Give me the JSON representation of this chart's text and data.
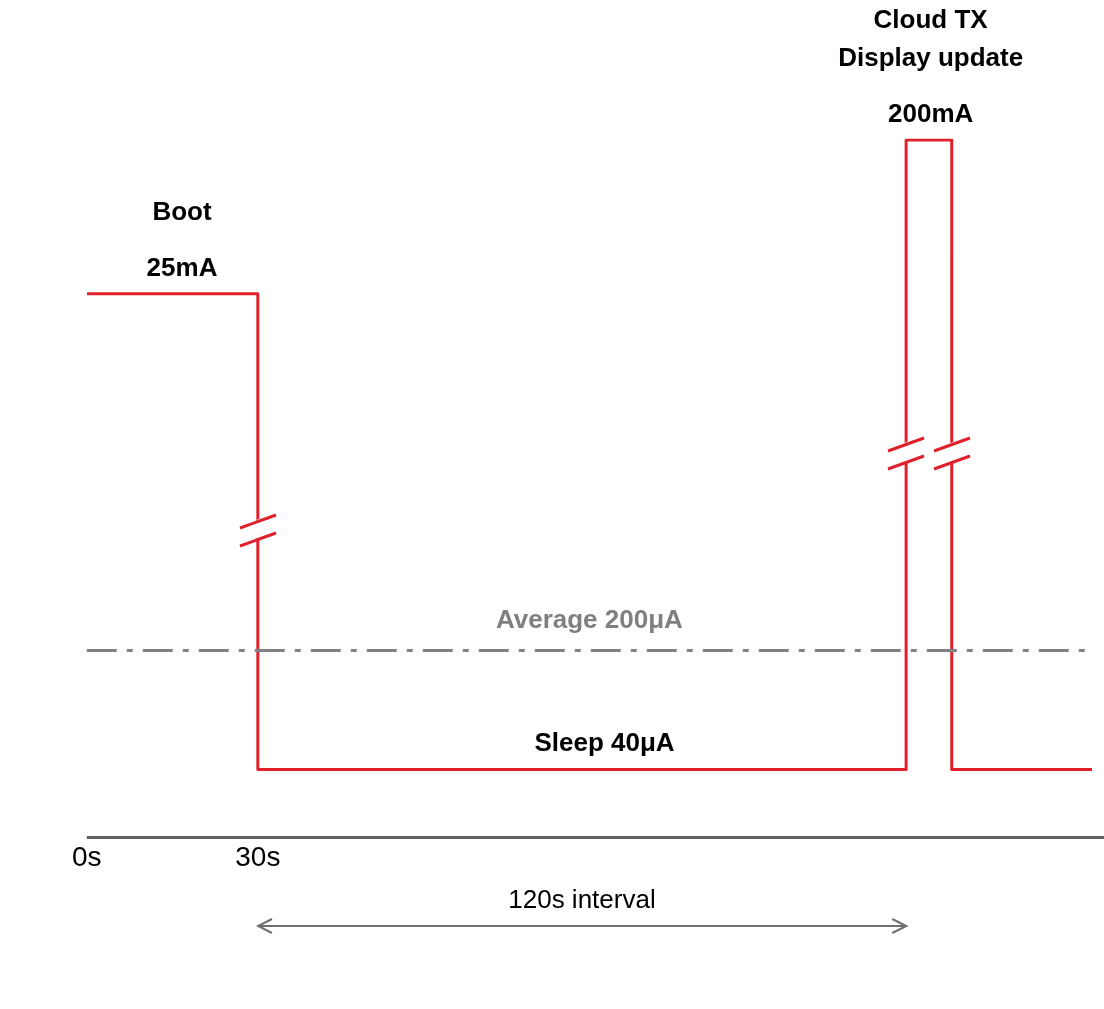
{
  "chart_data": {
    "type": "step",
    "log": "y",
    "tick_labels": "x",
    "x": [
      0,
      16.7,
      30,
      90.8,
      143.7,
      148,
      151.7,
      176.3
    ],
    "series": [
      {
        "color": "#e0202a",
        "values": [
          25,
          25,
          0.04,
          0.04,
          200,
          200,
          0.04,
          0.04
        ],
        "value_labels": [
          null,
          "25mA",
          null,
          "Sleep 40μA",
          null,
          "200mA",
          null,
          null
        ]
      }
    ],
    "xlim": [
      0,
      176.3
    ],
    "xticks": [
      {
        "value": 0,
        "label": "0s"
      },
      {
        "value": 30,
        "label": "30s"
      }
    ],
    "ref_lines": [
      {
        "axis": "y",
        "value": 0.2,
        "label": "Average 200μA",
        "color": "#808080",
        "line_style": "dashdot"
      }
    ],
    "annotations": [
      {
        "text": "Boot",
        "x": 16.7,
        "y": 25
      },
      {
        "text": "Cloud TX\nDisplay update",
        "x": 148,
        "y": 200
      },
      "120s interval"
    ]
  }
}
